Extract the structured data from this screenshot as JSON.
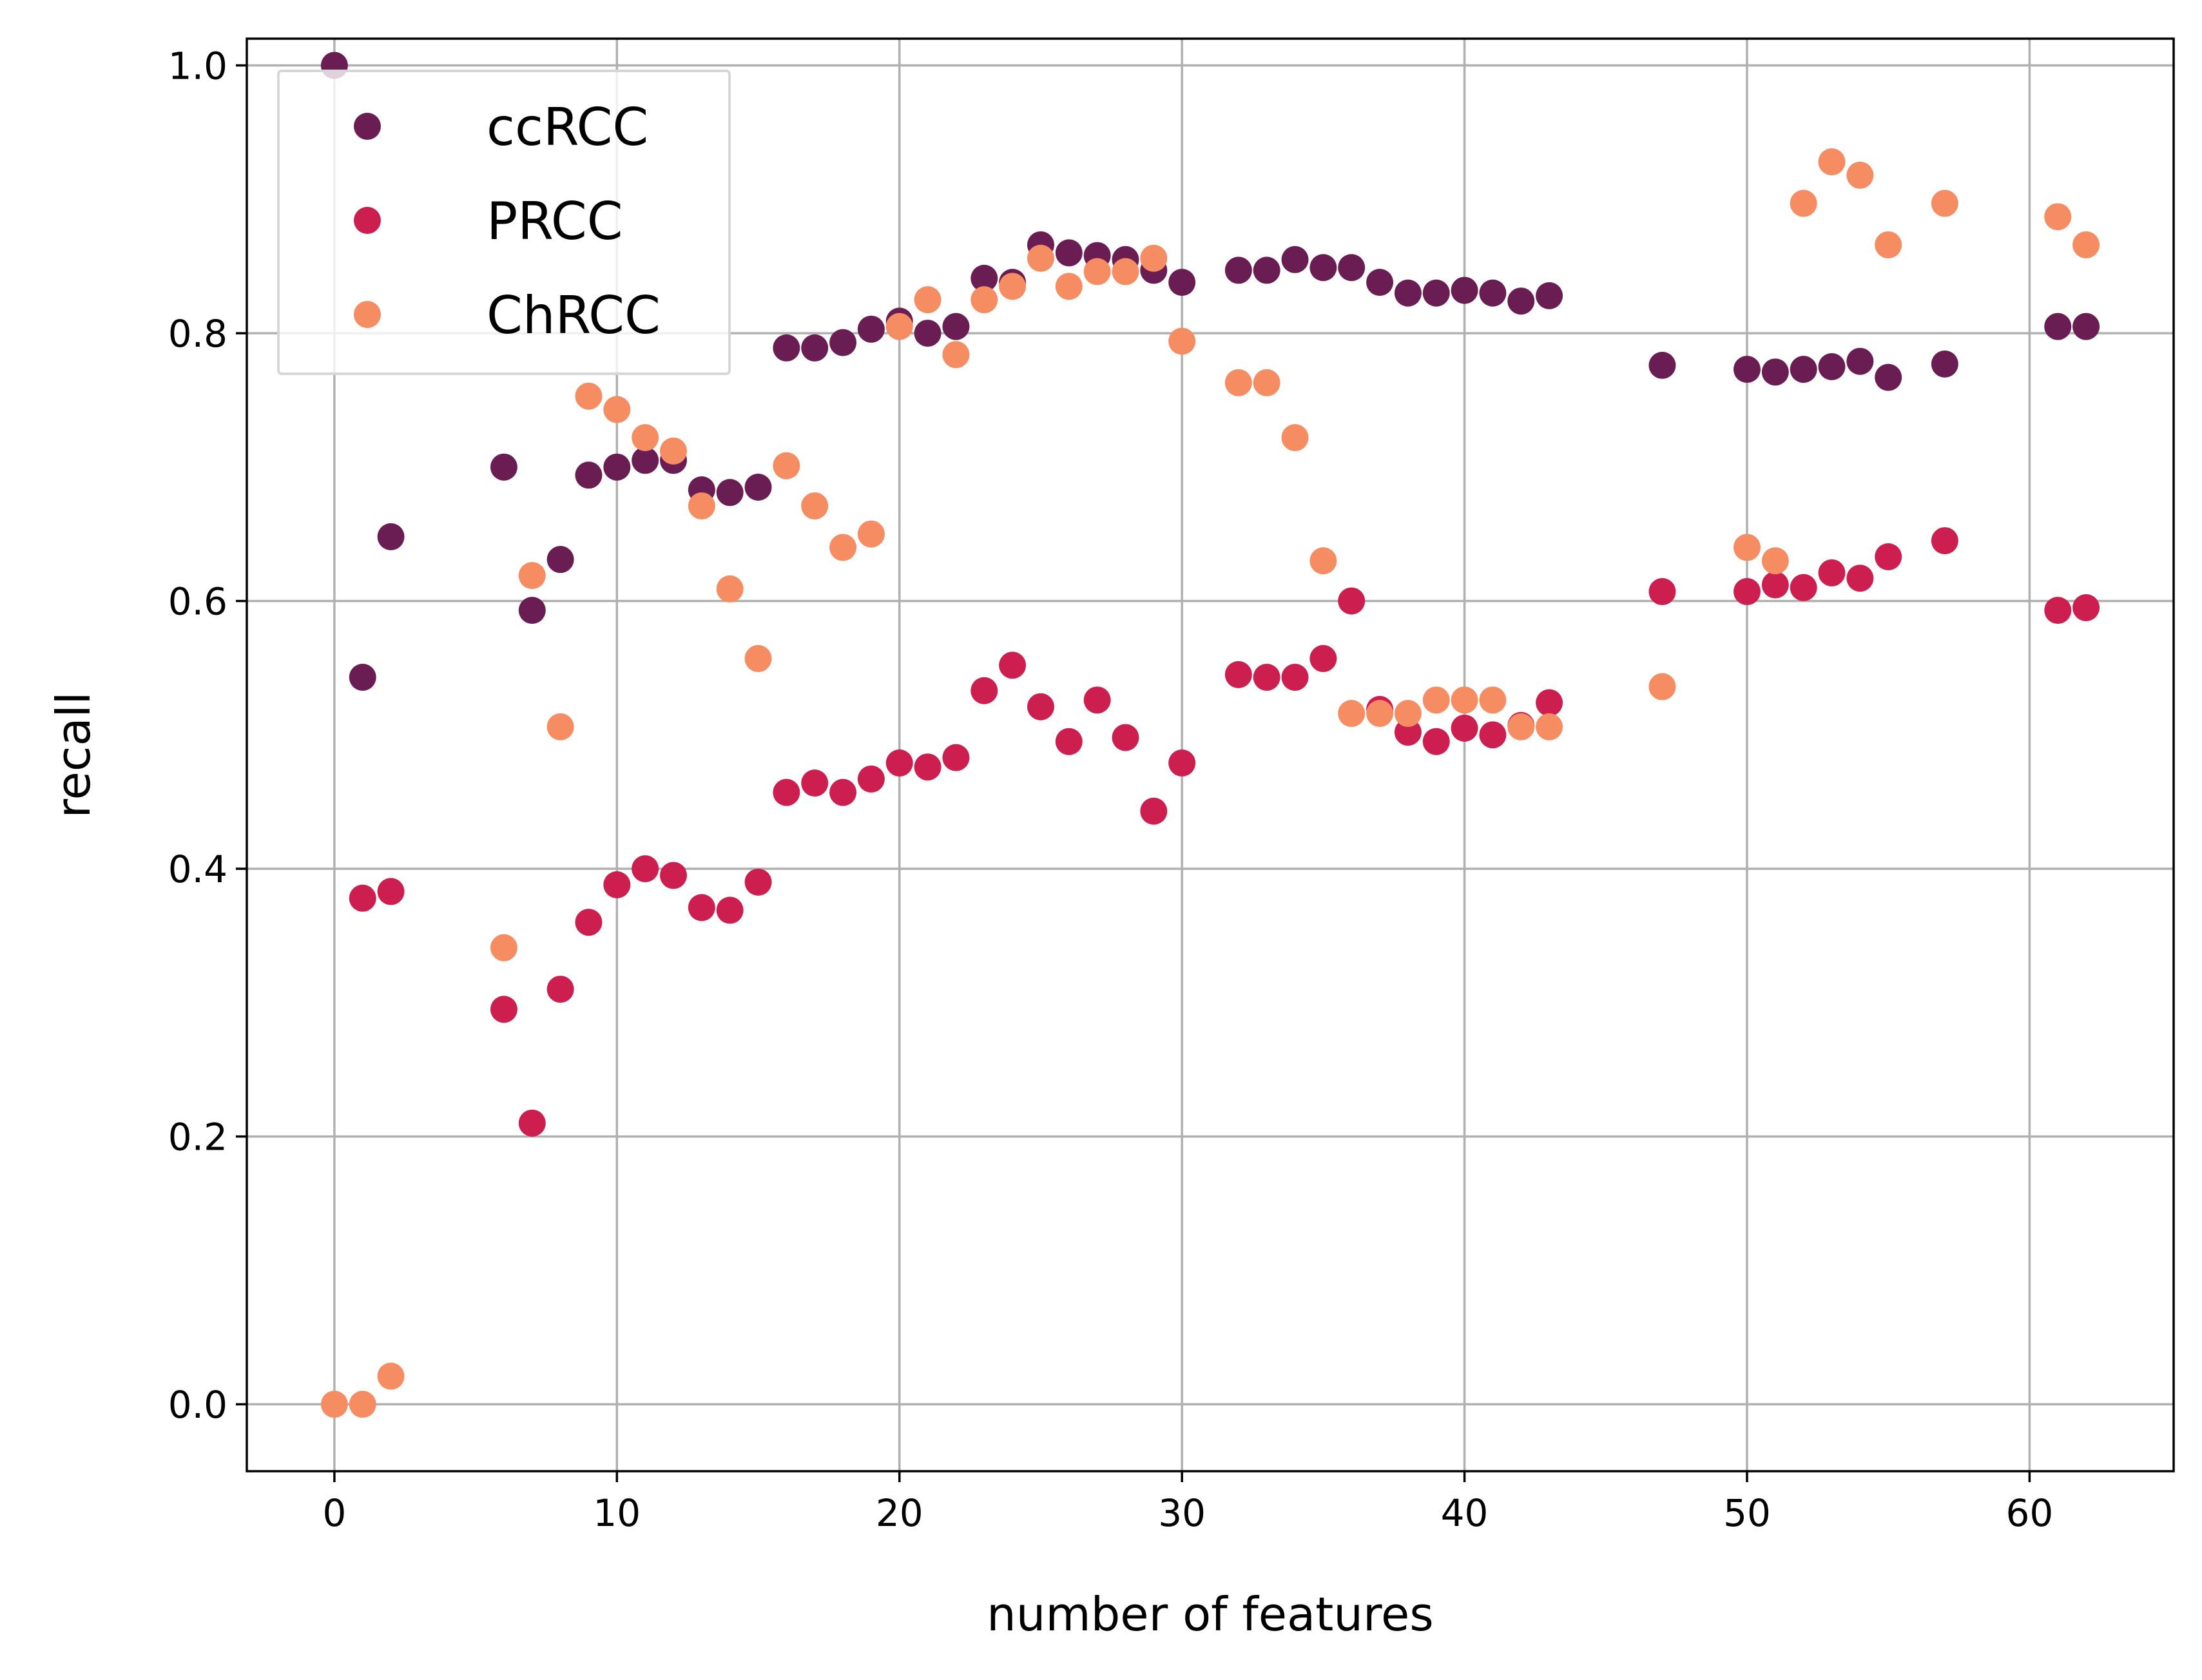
{
  "chart_data": {
    "type": "scatter",
    "title": "",
    "xlabel": "number of features",
    "ylabel": "recall",
    "xlim": [
      -3.1,
      65.1
    ],
    "ylim": [
      -0.05,
      1.02
    ],
    "xticks": [
      0,
      10,
      20,
      30,
      40,
      50,
      60
    ],
    "yticks": [
      0.0,
      0.2,
      0.4,
      0.6,
      0.8,
      1.0
    ],
    "xtick_labels": [
      "0",
      "10",
      "20",
      "30",
      "40",
      "50",
      "60"
    ],
    "ytick_labels": [
      "0.0",
      "0.2",
      "0.4",
      "0.6",
      "0.8",
      "1.0"
    ],
    "grid": true,
    "legend_position": "top-left",
    "series": [
      {
        "name": "ccRCC",
        "color": "#6a1d52",
        "points": [
          [
            0,
            1.0
          ],
          [
            1,
            0.543
          ],
          [
            2,
            0.648
          ],
          [
            6,
            0.7
          ],
          [
            7,
            0.593
          ],
          [
            8,
            0.631
          ],
          [
            9,
            0.694
          ],
          [
            10,
            0.7
          ],
          [
            11,
            0.705
          ],
          [
            12,
            0.705
          ],
          [
            13,
            0.683
          ],
          [
            14,
            0.681
          ],
          [
            15,
            0.685
          ],
          [
            16,
            0.789
          ],
          [
            17,
            0.789
          ],
          [
            18,
            0.793
          ],
          [
            19,
            0.803
          ],
          [
            20,
            0.809
          ],
          [
            21,
            0.8
          ],
          [
            22,
            0.805
          ],
          [
            23,
            0.841
          ],
          [
            24,
            0.838
          ],
          [
            25,
            0.866
          ],
          [
            26,
            0.86
          ],
          [
            27,
            0.858
          ],
          [
            28,
            0.855
          ],
          [
            29,
            0.847
          ],
          [
            30,
            0.838
          ],
          [
            32,
            0.847
          ],
          [
            33,
            0.847
          ],
          [
            34,
            0.855
          ],
          [
            35,
            0.849
          ],
          [
            36,
            0.849
          ],
          [
            37,
            0.838
          ],
          [
            38,
            0.83
          ],
          [
            39,
            0.83
          ],
          [
            40,
            0.832
          ],
          [
            41,
            0.83
          ],
          [
            42,
            0.824
          ],
          [
            43,
            0.828
          ],
          [
            47,
            0.776
          ],
          [
            50,
            0.773
          ],
          [
            51,
            0.771
          ],
          [
            52,
            0.773
          ],
          [
            53,
            0.775
          ],
          [
            54,
            0.779
          ],
          [
            55,
            0.767
          ],
          [
            57,
            0.777
          ],
          [
            61,
            0.805
          ],
          [
            62,
            0.805
          ]
        ]
      },
      {
        "name": "PRCC",
        "color": "#cc1f4f",
        "points": [
          [
            1,
            0.378
          ],
          [
            2,
            0.383
          ],
          [
            6,
            0.295
          ],
          [
            7,
            0.21
          ],
          [
            8,
            0.31
          ],
          [
            9,
            0.36
          ],
          [
            10,
            0.388
          ],
          [
            11,
            0.4
          ],
          [
            12,
            0.395
          ],
          [
            13,
            0.371
          ],
          [
            14,
            0.369
          ],
          [
            15,
            0.39
          ],
          [
            16,
            0.457
          ],
          [
            17,
            0.464
          ],
          [
            18,
            0.457
          ],
          [
            19,
            0.467
          ],
          [
            20,
            0.479
          ],
          [
            21,
            0.476
          ],
          [
            22,
            0.483
          ],
          [
            23,
            0.533
          ],
          [
            24,
            0.552
          ],
          [
            25,
            0.521
          ],
          [
            26,
            0.495
          ],
          [
            27,
            0.526
          ],
          [
            28,
            0.498
          ],
          [
            29,
            0.443
          ],
          [
            30,
            0.479
          ],
          [
            32,
            0.545
          ],
          [
            33,
            0.543
          ],
          [
            34,
            0.543
          ],
          [
            35,
            0.557
          ],
          [
            36,
            0.6
          ],
          [
            37,
            0.519
          ],
          [
            38,
            0.502
          ],
          [
            39,
            0.495
          ],
          [
            40,
            0.505
          ],
          [
            41,
            0.5
          ],
          [
            42,
            0.507
          ],
          [
            43,
            0.524
          ],
          [
            47,
            0.607
          ],
          [
            50,
            0.607
          ],
          [
            51,
            0.612
          ],
          [
            52,
            0.61
          ],
          [
            53,
            0.621
          ],
          [
            54,
            0.617
          ],
          [
            55,
            0.633
          ],
          [
            57,
            0.645
          ],
          [
            61,
            0.593
          ],
          [
            62,
            0.595
          ]
        ]
      },
      {
        "name": "ChRCC",
        "color": "#f68d62",
        "points": [
          [
            0,
            0.0
          ],
          [
            1,
            0.0
          ],
          [
            2,
            0.021
          ],
          [
            6,
            0.341
          ],
          [
            7,
            0.619
          ],
          [
            8,
            0.506
          ],
          [
            9,
            0.753
          ],
          [
            10,
            0.743
          ],
          [
            11,
            0.722
          ],
          [
            12,
            0.712
          ],
          [
            13,
            0.671
          ],
          [
            14,
            0.609
          ],
          [
            15,
            0.557
          ],
          [
            16,
            0.701
          ],
          [
            17,
            0.671
          ],
          [
            18,
            0.64
          ],
          [
            19,
            0.65
          ],
          [
            20,
            0.805
          ],
          [
            21,
            0.825
          ],
          [
            22,
            0.784
          ],
          [
            23,
            0.825
          ],
          [
            24,
            0.835
          ],
          [
            25,
            0.856
          ],
          [
            26,
            0.835
          ],
          [
            27,
            0.846
          ],
          [
            28,
            0.846
          ],
          [
            29,
            0.856
          ],
          [
            30,
            0.794
          ],
          [
            32,
            0.763
          ],
          [
            33,
            0.763
          ],
          [
            34,
            0.722
          ],
          [
            35,
            0.63
          ],
          [
            36,
            0.516
          ],
          [
            37,
            0.516
          ],
          [
            38,
            0.516
          ],
          [
            39,
            0.526
          ],
          [
            40,
            0.526
          ],
          [
            41,
            0.526
          ],
          [
            42,
            0.506
          ],
          [
            43,
            0.506
          ],
          [
            47,
            0.536
          ],
          [
            50,
            0.64
          ],
          [
            51,
            0.63
          ],
          [
            52,
            0.897
          ],
          [
            53,
            0.928
          ],
          [
            54,
            0.918
          ],
          [
            55,
            0.866
          ],
          [
            57,
            0.897
          ],
          [
            61,
            0.887
          ],
          [
            62,
            0.866
          ]
        ]
      }
    ]
  }
}
